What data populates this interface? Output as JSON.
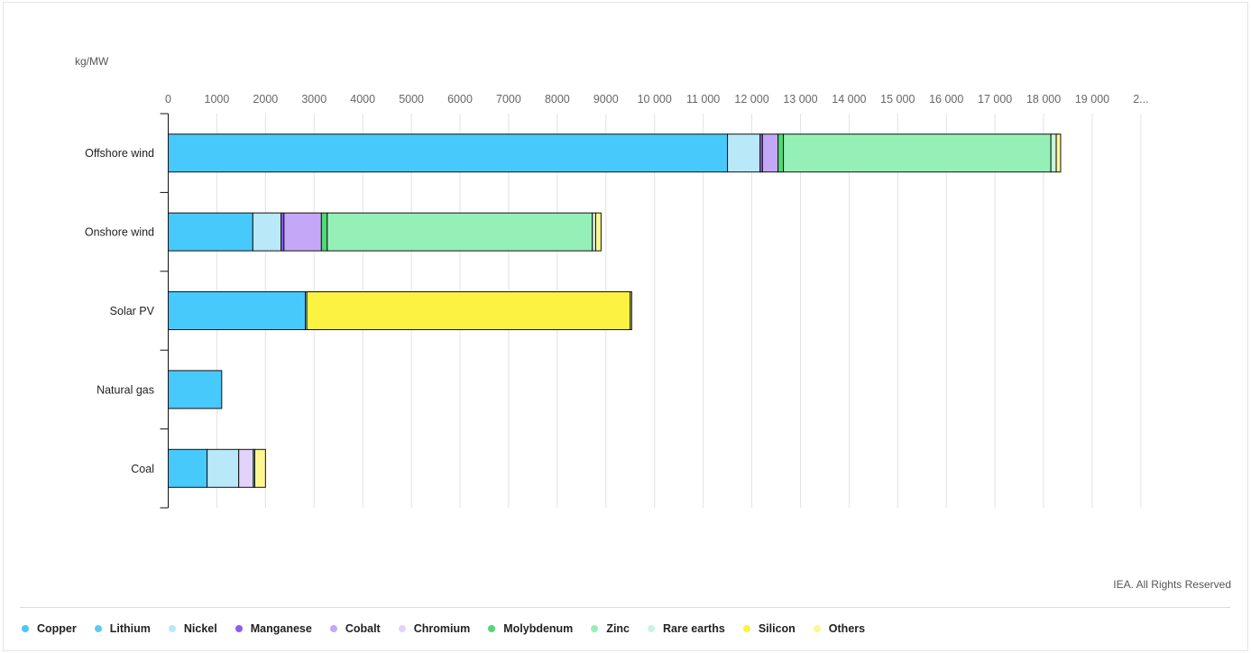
{
  "credit": "IEA. All Rights Reserved",
  "chart_data": {
    "type": "bar",
    "orientation": "horizontal",
    "stacked": true,
    "title": "",
    "xlabel": "",
    "ylabel": "kg/MW",
    "xlim": [
      0,
      20000
    ],
    "grid": true,
    "legend_position": "bottom",
    "x_ticks": [
      "0",
      "1000",
      "2000",
      "3000",
      "4000",
      "5000",
      "6000",
      "7000",
      "8000",
      "9000",
      "10 000",
      "11 000",
      "12 000",
      "13 000",
      "14 000",
      "15 000",
      "16 000",
      "17 000",
      "18 000",
      "19 000",
      "2..."
    ],
    "categories": [
      "Offshore wind",
      "Onshore wind",
      "Solar PV",
      "Natural gas",
      "Coal"
    ],
    "series": [
      {
        "name": "Copper",
        "color": "#48c9fb",
        "values": [
          11500,
          1740,
          2820,
          1100,
          800
        ]
      },
      {
        "name": "Lithium",
        "color": "#5ccafa",
        "values": [
          0,
          0,
          0,
          0,
          0
        ]
      },
      {
        "name": "Nickel",
        "color": "#b9e9f8",
        "values": [
          670,
          580,
          0,
          0,
          650
        ]
      },
      {
        "name": "Manganese",
        "color": "#8b5cf6",
        "values": [
          50,
          60,
          0,
          0,
          0
        ]
      },
      {
        "name": "Cobalt",
        "color": "#c4a8f7",
        "values": [
          320,
          770,
          0,
          0,
          0
        ]
      },
      {
        "name": "Chromium",
        "color": "#e2d3fa",
        "values": [
          0,
          0,
          0,
          0,
          300
        ]
      },
      {
        "name": "Molybdenum",
        "color": "#4fd975",
        "values": [
          110,
          120,
          0,
          0,
          30
        ]
      },
      {
        "name": "Zinc",
        "color": "#95f0b8",
        "values": [
          5500,
          5450,
          0,
          0,
          0
        ]
      },
      {
        "name": "Rare earths",
        "color": "#c8f6dd",
        "values": [
          110,
          70,
          30,
          0,
          0
        ]
      },
      {
        "name": "Silicon",
        "color": "#fcf241",
        "values": [
          0,
          0,
          6650,
          0,
          0
        ]
      },
      {
        "name": "Others",
        "color": "#fcf793",
        "values": [
          90,
          110,
          30,
          0,
          220
        ]
      }
    ]
  }
}
